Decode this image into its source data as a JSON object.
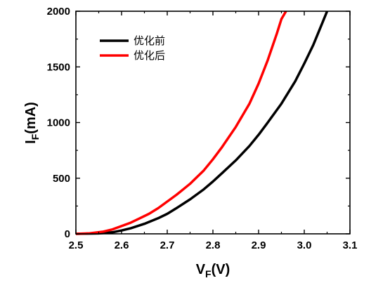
{
  "chart_data": {
    "type": "line",
    "xlabel": "VF(V)",
    "xlabel_main": "V",
    "xlabel_sub": "F",
    "xlabel_unit": "(V)",
    "ylabel": "IF(mA)",
    "ylabel_main": "I",
    "ylabel_sub": "F",
    "ylabel_unit": "(mA)",
    "xlim": [
      2.5,
      3.1
    ],
    "ylim": [
      0,
      2000
    ],
    "xticks": [
      "2.5",
      "2.6",
      "2.7",
      "2.8",
      "2.9",
      "3.0",
      "3.1"
    ],
    "yticks": [
      "0",
      "500",
      "1000",
      "1500",
      "2000"
    ],
    "legend_position": "top-left",
    "grid": false,
    "series": [
      {
        "name": "优化前",
        "color": "#000000",
        "x": [
          2.5,
          2.55,
          2.58,
          2.6,
          2.62,
          2.65,
          2.68,
          2.7,
          2.72,
          2.75,
          2.78,
          2.8,
          2.82,
          2.85,
          2.88,
          2.9,
          2.92,
          2.95,
          2.98,
          3.0,
          3.02,
          3.04,
          3.05
        ],
        "y": [
          0,
          4,
          14,
          30,
          50,
          90,
          140,
          180,
          230,
          310,
          400,
          470,
          545,
          660,
          790,
          890,
          1000,
          1170,
          1370,
          1530,
          1700,
          1900,
          2000
        ]
      },
      {
        "name": "优化后",
        "color": "#ff0000",
        "x": [
          2.5,
          2.53,
          2.56,
          2.58,
          2.6,
          2.62,
          2.64,
          2.66,
          2.68,
          2.7,
          2.72,
          2.75,
          2.78,
          2.8,
          2.82,
          2.85,
          2.88,
          2.9,
          2.92,
          2.94,
          2.95,
          2.96
        ],
        "y": [
          0,
          5,
          20,
          40,
          70,
          100,
          140,
          180,
          230,
          290,
          350,
          450,
          570,
          670,
          780,
          960,
          1170,
          1350,
          1560,
          1800,
          1930,
          2000
        ]
      }
    ]
  }
}
